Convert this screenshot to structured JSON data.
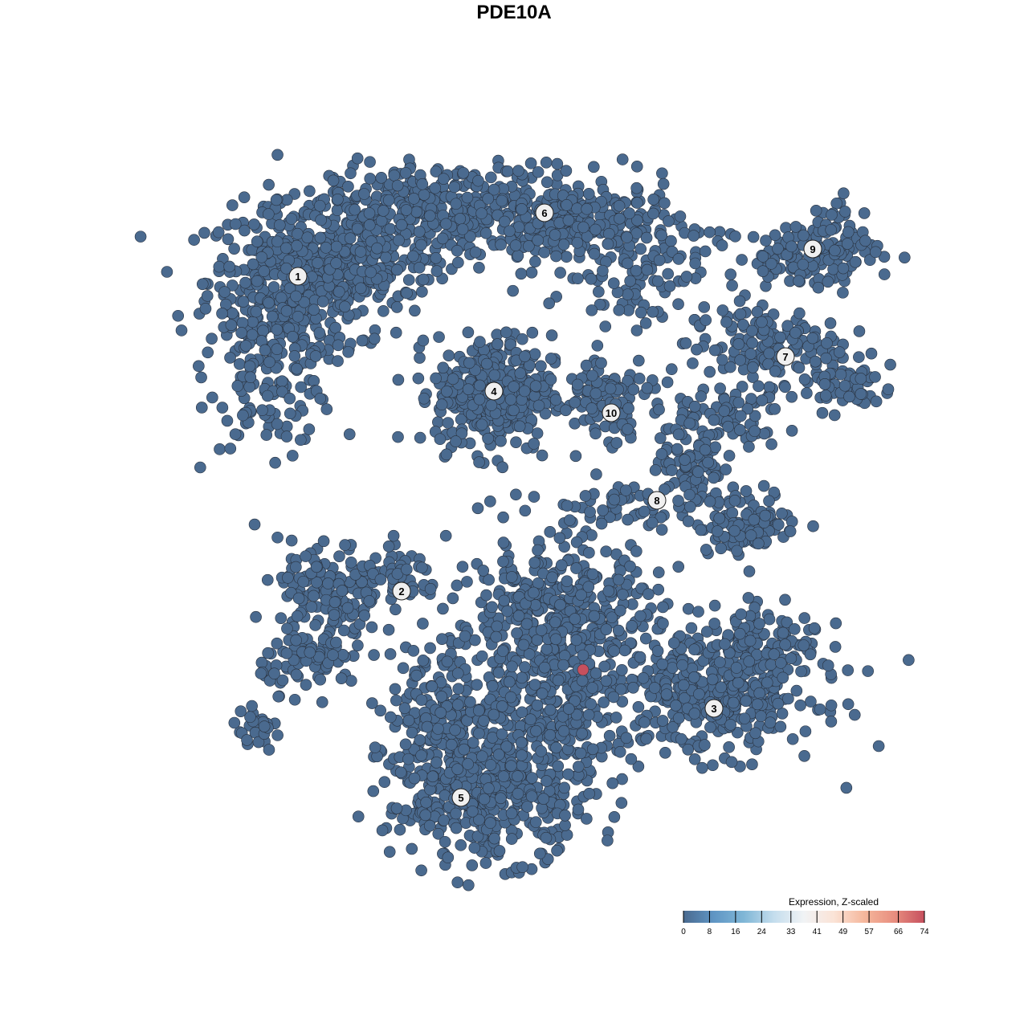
{
  "chart_data": {
    "type": "scatter",
    "title": "PDE10A",
    "xlabel": "",
    "ylabel": "",
    "xlim": [
      -46,
      50
    ],
    "ylim": [
      -46,
      46
    ],
    "grid": false,
    "point_color_low": "#4a6a8f",
    "point_color_high": "#c6505e",
    "point_stroke": "#2a3340",
    "clusters": [
      {
        "label": "1",
        "center": [
          -26.9,
          29.6
        ],
        "blobs": [
          [
            -27,
            29,
            7,
            6,
            420
          ],
          [
            -30,
            18,
            5,
            6,
            160
          ],
          [
            -18,
            33,
            6,
            5,
            200
          ]
        ]
      },
      {
        "label": "6",
        "center": [
          3.8,
          37.5
        ],
        "blobs": [
          [
            -8,
            38,
            9,
            3.5,
            320
          ],
          [
            8,
            36,
            8,
            3.5,
            260
          ],
          [
            15,
            30,
            5,
            4,
            80
          ]
        ]
      },
      {
        "label": "4",
        "center": [
          -2.5,
          15.3
        ],
        "blobs": [
          [
            -2.5,
            15,
            4.5,
            4.5,
            380
          ]
        ]
      },
      {
        "label": "10",
        "center": [
          12.1,
          12.6
        ],
        "blobs": [
          [
            12,
            16,
            4,
            2.5,
            70
          ],
          [
            12,
            12,
            2,
            3,
            30
          ]
        ]
      },
      {
        "label": "9",
        "center": [
          37.2,
          33
        ],
        "blobs": [
          [
            36,
            32,
            6,
            2.5,
            110
          ],
          [
            40,
            35,
            2.5,
            3,
            40
          ]
        ]
      },
      {
        "label": "7",
        "center": [
          33.8,
          19.6
        ],
        "blobs": [
          [
            31,
            21,
            6,
            3,
            140
          ],
          [
            41,
            16,
            4,
            2,
            60
          ],
          [
            27,
            12,
            4,
            2.5,
            60
          ]
        ]
      },
      {
        "label": "8",
        "center": [
          17.8,
          1.7
        ],
        "blobs": [
          [
            22,
            7,
            2.5,
            4,
            90
          ],
          [
            29,
            -1,
            4,
            2.5,
            110
          ],
          [
            12,
            1,
            5,
            2,
            60
          ]
        ]
      },
      {
        "label": "2",
        "center": [
          -14,
          -9.6
        ],
        "blobs": [
          [
            -23,
            -10,
            4,
            4,
            150
          ],
          [
            -25,
            -18,
            4,
            2.5,
            80
          ],
          [
            -14,
            -8,
            3,
            2,
            50
          ],
          [
            -32,
            -27,
            2,
            1.5,
            25
          ]
        ]
      },
      {
        "label": "3",
        "center": [
          24.9,
          -24.2
        ],
        "blobs": [
          [
            25,
            -22,
            8,
            5,
            380
          ],
          [
            32,
            -16,
            5,
            3,
            80
          ]
        ]
      },
      {
        "label": "5",
        "center": [
          -6.6,
          -35.3
        ],
        "blobs": [
          [
            -3,
            -35,
            8,
            5,
            420
          ],
          [
            -8,
            -25,
            5,
            6,
            200
          ],
          [
            5,
            -13,
            8,
            6,
            420
          ],
          [
            6,
            -24,
            6,
            5,
            200
          ]
        ]
      }
    ],
    "highlight_points": [
      {
        "x": 8.6,
        "y": -19.4,
        "value": 74
      }
    ],
    "colorbar": {
      "title": "Expression, Z-scaled",
      "ticks": [
        "0",
        "8",
        "16",
        "24",
        "33",
        "41",
        "49",
        "57",
        "66",
        "74"
      ],
      "range": [
        0,
        74
      ],
      "colors": [
        "#4a6a8f",
        "#5f95c4",
        "#7fb6d6",
        "#c4dded",
        "#f1f3f5",
        "#fbe3d6",
        "#f5b79c",
        "#e88e7f",
        "#c6505e"
      ]
    }
  }
}
